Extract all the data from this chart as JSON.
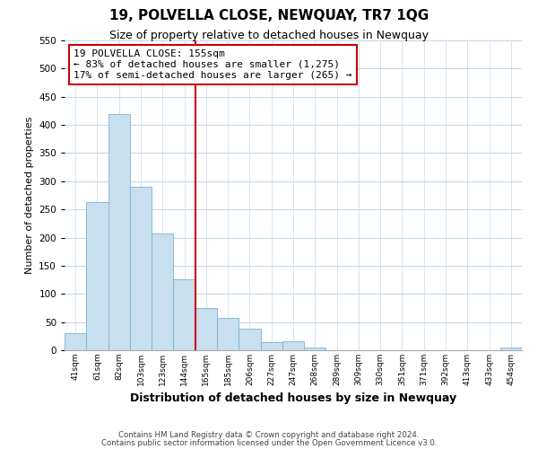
{
  "title": "19, POLVELLA CLOSE, NEWQUAY, TR7 1QG",
  "subtitle": "Size of property relative to detached houses in Newquay",
  "xlabel": "Distribution of detached houses by size in Newquay",
  "ylabel": "Number of detached properties",
  "bin_labels": [
    "41sqm",
    "61sqm",
    "82sqm",
    "103sqm",
    "123sqm",
    "144sqm",
    "165sqm",
    "185sqm",
    "206sqm",
    "227sqm",
    "247sqm",
    "268sqm",
    "289sqm",
    "309sqm",
    "330sqm",
    "351sqm",
    "371sqm",
    "392sqm",
    "413sqm",
    "433sqm",
    "454sqm"
  ],
  "bar_values": [
    30,
    263,
    420,
    290,
    207,
    126,
    75,
    57,
    38,
    15,
    16,
    5,
    0,
    0,
    0,
    0,
    0,
    0,
    0,
    0,
    5
  ],
  "bar_color": "#c8dff0",
  "bar_edge_color": "#7ab3d4",
  "vline_x_idx": 6,
  "vline_color": "#cc0000",
  "annotation_line1": "19 POLVELLA CLOSE: 155sqm",
  "annotation_line2": "← 83% of detached houses are smaller (1,275)",
  "annotation_line3": "17% of semi-detached houses are larger (265) →",
  "annotation_box_color": "#ffffff",
  "annotation_box_edge": "#cc0000",
  "ylim": [
    0,
    550
  ],
  "yticks": [
    0,
    50,
    100,
    150,
    200,
    250,
    300,
    350,
    400,
    450,
    500,
    550
  ],
  "footer_line1": "Contains HM Land Registry data © Crown copyright and database right 2024.",
  "footer_line2": "Contains public sector information licensed under the Open Government Licence v3.0.",
  "bg_color": "#ffffff",
  "grid_color": "#c5d8e8",
  "title_fontsize": 11,
  "subtitle_fontsize": 9,
  "ylabel_fontsize": 8,
  "xlabel_fontsize": 9
}
